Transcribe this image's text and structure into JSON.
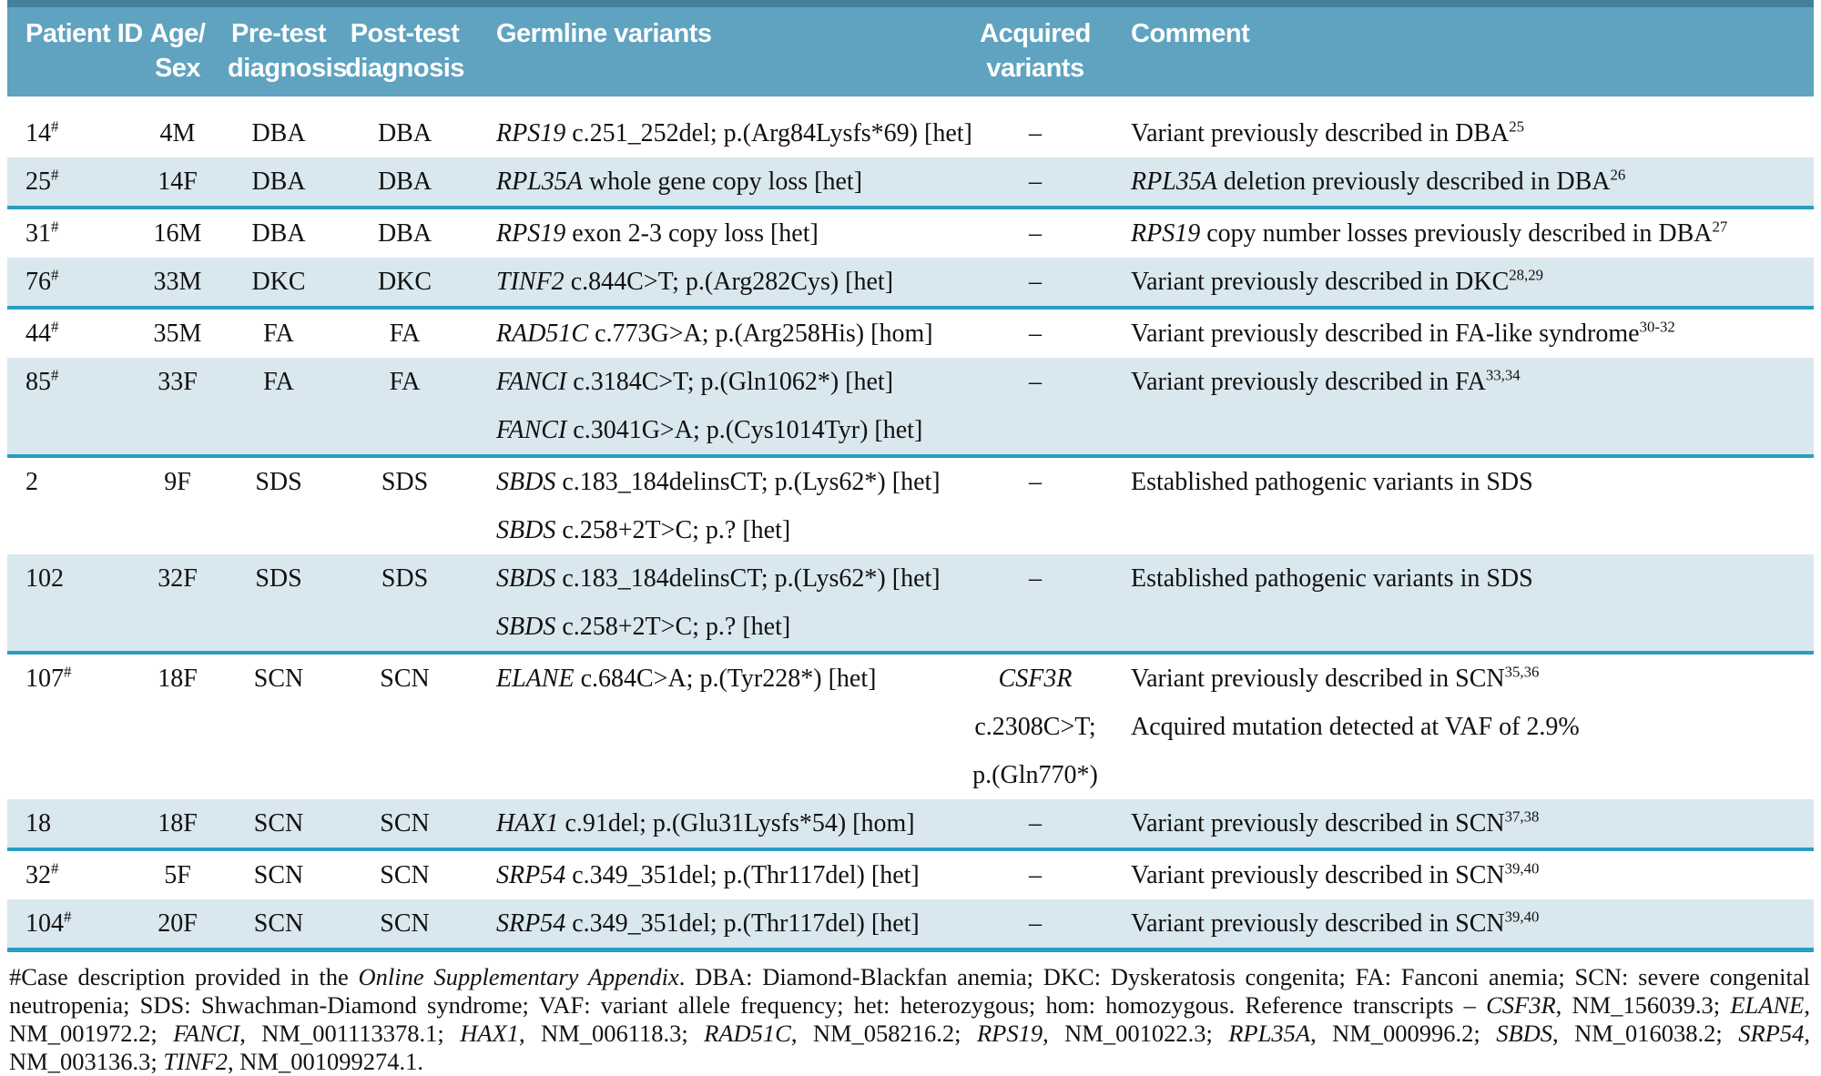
{
  "colors": {
    "header_bg": "#5fa3c0",
    "header_top_strip": "#45809b",
    "header_text": "#ffffff",
    "shaded_row_bg": "#d9e7ee",
    "separator_rule": "#2a9dc1",
    "body_text": "#111111"
  },
  "table": {
    "header": {
      "cols": [
        {
          "key": "patient-id",
          "align": "left",
          "lines": [
            "Patient ID"
          ]
        },
        {
          "key": "age-sex",
          "align": "center",
          "lines": [
            "Age/",
            "Sex"
          ]
        },
        {
          "key": "pretest",
          "align": "center",
          "lines": [
            "Pre-test",
            "diagnosis"
          ]
        },
        {
          "key": "posttest",
          "align": "center",
          "lines": [
            "Post-test",
            "diagnosis"
          ]
        },
        {
          "key": "germline",
          "align": "germ",
          "lines": [
            "Germline variants"
          ]
        },
        {
          "key": "acquired",
          "align": "center",
          "lines": [
            "Acquired",
            "variants"
          ]
        },
        {
          "key": "comment",
          "align": "comment",
          "lines": [
            "Comment"
          ]
        }
      ]
    },
    "rows": [
      {
        "shaded": false,
        "rule": false,
        "id": [
          {
            "t": "14"
          },
          {
            "t": "#",
            "s": true
          }
        ],
        "age_sex": "4M",
        "pre": "DBA",
        "post": "DBA",
        "germline": [
          [
            {
              "t": "RPS19",
              "i": true
            },
            {
              "t": " c.251_252del; p.(Arg84Lysfs*69) [het]"
            }
          ]
        ],
        "acquired": [
          [
            {
              "t": "–"
            }
          ]
        ],
        "comment": [
          [
            {
              "t": "Variant previously described in DBA"
            },
            {
              "t": "25",
              "s": true
            }
          ]
        ]
      },
      {
        "shaded": true,
        "rule": true,
        "id": [
          {
            "t": "25"
          },
          {
            "t": "#",
            "s": true
          }
        ],
        "age_sex": "14F",
        "pre": "DBA",
        "post": "DBA",
        "germline": [
          [
            {
              "t": "RPL35A",
              "i": true
            },
            {
              "t": " whole gene copy loss [het]"
            }
          ]
        ],
        "acquired": [
          [
            {
              "t": "–"
            }
          ]
        ],
        "comment": [
          [
            {
              "t": "RPL35A",
              "i": true
            },
            {
              "t": " deletion previously described in DBA"
            },
            {
              "t": "26",
              "s": true
            }
          ]
        ]
      },
      {
        "shaded": false,
        "rule": false,
        "id": [
          {
            "t": "31"
          },
          {
            "t": "#",
            "s": true
          }
        ],
        "age_sex": "16M",
        "pre": "DBA",
        "post": "DBA",
        "germline": [
          [
            {
              "t": "RPS19",
              "i": true
            },
            {
              "t": " exon 2-3 copy loss [het]"
            }
          ]
        ],
        "acquired": [
          [
            {
              "t": "–"
            }
          ]
        ],
        "comment": [
          [
            {
              "t": "RPS19",
              "i": true
            },
            {
              "t": " copy number losses previously described in DBA"
            },
            {
              "t": "27",
              "s": true
            }
          ]
        ]
      },
      {
        "shaded": true,
        "rule": true,
        "id": [
          {
            "t": "76"
          },
          {
            "t": "#",
            "s": true
          }
        ],
        "age_sex": "33M",
        "pre": "DKC",
        "post": "DKC",
        "germline": [
          [
            {
              "t": "TINF2",
              "i": true
            },
            {
              "t": " c.844C>T; p.(Arg282Cys) [het]"
            }
          ]
        ],
        "acquired": [
          [
            {
              "t": "–"
            }
          ]
        ],
        "comment": [
          [
            {
              "t": "Variant previously described in DKC"
            },
            {
              "t": "28,29",
              "s": true
            }
          ]
        ]
      },
      {
        "shaded": false,
        "rule": false,
        "id": [
          {
            "t": "44"
          },
          {
            "t": "#",
            "s": true
          }
        ],
        "age_sex": "35M",
        "pre": "FA",
        "post": "FA",
        "germline": [
          [
            {
              "t": "RAD51C",
              "i": true
            },
            {
              "t": " c.773G>A; p.(Arg258His) [hom]"
            }
          ]
        ],
        "acquired": [
          [
            {
              "t": "–"
            }
          ]
        ],
        "comment": [
          [
            {
              "t": "Variant previously described in FA-like syndrome"
            },
            {
              "t": "30-32",
              "s": true
            }
          ]
        ]
      },
      {
        "shaded": true,
        "rule": true,
        "id": [
          {
            "t": "85"
          },
          {
            "t": "#",
            "s": true
          }
        ],
        "age_sex": "33F",
        "pre": "FA",
        "post": "FA",
        "germline": [
          [
            {
              "t": "FANCI",
              "i": true
            },
            {
              "t": " c.3184C>T; p.(Gln1062*) [het]"
            }
          ],
          [
            {
              "t": "FANCI",
              "i": true
            },
            {
              "t": " c.3041G>A; p.(Cys1014Tyr) [het]"
            }
          ]
        ],
        "acquired": [
          [
            {
              "t": "–"
            }
          ]
        ],
        "comment": [
          [
            {
              "t": "Variant previously described in FA"
            },
            {
              "t": "33,34",
              "s": true
            }
          ]
        ]
      },
      {
        "shaded": false,
        "rule": false,
        "id": [
          {
            "t": "2"
          }
        ],
        "age_sex": "9F",
        "pre": "SDS",
        "post": "SDS",
        "germline": [
          [
            {
              "t": "SBDS",
              "i": true
            },
            {
              "t": " c.183_184delinsCT; p.(Lys62*) [het]"
            }
          ],
          [
            {
              "t": "SBDS",
              "i": true
            },
            {
              "t": " c.258+2T>C; p.? [het]"
            }
          ]
        ],
        "acquired": [
          [
            {
              "t": "–"
            }
          ]
        ],
        "comment": [
          [
            {
              "t": "Established pathogenic variants in SDS"
            }
          ]
        ]
      },
      {
        "shaded": true,
        "rule": true,
        "id": [
          {
            "t": "102"
          }
        ],
        "age_sex": "32F",
        "pre": "SDS",
        "post": "SDS",
        "germline": [
          [
            {
              "t": "SBDS",
              "i": true
            },
            {
              "t": " c.183_184delinsCT; p.(Lys62*) [het]"
            }
          ],
          [
            {
              "t": "SBDS",
              "i": true
            },
            {
              "t": " c.258+2T>C; p.? [het]"
            }
          ]
        ],
        "acquired": [
          [
            {
              "t": "–"
            }
          ]
        ],
        "comment": [
          [
            {
              "t": "Established pathogenic variants in SDS"
            }
          ]
        ]
      },
      {
        "shaded": false,
        "rule": false,
        "id": [
          {
            "t": "107"
          },
          {
            "t": "#",
            "s": true
          }
        ],
        "age_sex": "18F",
        "pre": "SCN",
        "post": "SCN",
        "germline": [
          [
            {
              "t": "ELANE",
              "i": true
            },
            {
              "t": " c.684C>A; p.(Tyr228*) [het]"
            }
          ]
        ],
        "acquired": [
          [
            {
              "t": "CSF3R",
              "i": true
            }
          ],
          [
            {
              "t": "c.2308C>T;"
            }
          ],
          [
            {
              "t": "p.(Gln770*)"
            }
          ]
        ],
        "comment": [
          [
            {
              "t": "Variant previously described in SCN"
            },
            {
              "t": "35,36",
              "s": true
            }
          ],
          [
            {
              "t": "Acquired mutation detected at VAF of 2.9%"
            }
          ]
        ]
      },
      {
        "shaded": true,
        "rule": true,
        "id": [
          {
            "t": "18"
          }
        ],
        "age_sex": "18F",
        "pre": "SCN",
        "post": "SCN",
        "germline": [
          [
            {
              "t": "HAX1",
              "i": true
            },
            {
              "t": " c.91del; p.(Glu31Lysfs*54) [hom]"
            }
          ]
        ],
        "acquired": [
          [
            {
              "t": "–"
            }
          ]
        ],
        "comment": [
          [
            {
              "t": "Variant previously described in SCN"
            },
            {
              "t": "37,38",
              "s": true
            }
          ]
        ]
      },
      {
        "shaded": false,
        "rule": false,
        "id": [
          {
            "t": "32"
          },
          {
            "t": "#",
            "s": true
          }
        ],
        "age_sex": "5F",
        "pre": "SCN",
        "post": "SCN",
        "germline": [
          [
            {
              "t": "SRP54",
              "i": true
            },
            {
              "t": " c.349_351del; p.(Thr117del) [het]"
            }
          ]
        ],
        "acquired": [
          [
            {
              "t": "–"
            }
          ]
        ],
        "comment": [
          [
            {
              "t": "Variant previously described in SCN"
            },
            {
              "t": "39,40",
              "s": true
            }
          ]
        ]
      },
      {
        "shaded": true,
        "rule": false,
        "last_rule": true,
        "id": [
          {
            "t": "104"
          },
          {
            "t": "#",
            "s": true
          }
        ],
        "age_sex": "20F",
        "pre": "SCN",
        "post": "SCN",
        "germline": [
          [
            {
              "t": "SRP54",
              "i": true
            },
            {
              "t": " c.349_351del; p.(Thr117del) [het]"
            }
          ]
        ],
        "acquired": [
          [
            {
              "t": "–"
            }
          ]
        ],
        "comment": [
          [
            {
              "t": "Variant previously described in SCN"
            },
            {
              "t": "39,40",
              "s": true
            }
          ]
        ]
      }
    ]
  },
  "footnote": {
    "segments": [
      {
        "t": "#Case description provided in the "
      },
      {
        "t": "Online Supplementary Appendix",
        "i": true
      },
      {
        "t": ". DBA: Diamond-Blackfan anemia; DKC: Dyskeratosis congenita; FA: Fanconi anemia; SCN: severe congenital neutropenia; SDS: Shwachman-Diamond syndrome; VAF: variant allele frequency; het: heterozygous; hom: homozygous. Reference transcripts – "
      },
      {
        "t": "CSF3R",
        "i": true
      },
      {
        "t": ", NM_156039.3; "
      },
      {
        "t": "ELANE",
        "i": true
      },
      {
        "t": ", NM_001972.2; "
      },
      {
        "t": "FANCI",
        "i": true
      },
      {
        "t": ", NM_001113378.1; "
      },
      {
        "t": "HAX1",
        "i": true
      },
      {
        "t": ", NM_006118.3; "
      },
      {
        "t": "RAD51C",
        "i": true
      },
      {
        "t": ", NM_058216.2; "
      },
      {
        "t": "RPS19",
        "i": true
      },
      {
        "t": ", NM_001022.3; "
      },
      {
        "t": "RPL35A",
        "i": true
      },
      {
        "t": ", NM_000996.2; "
      },
      {
        "t": "SBDS",
        "i": true
      },
      {
        "t": ", NM_016038.2; "
      },
      {
        "t": "SRP54",
        "i": true
      },
      {
        "t": ", NM_003136.3; "
      },
      {
        "t": "TINF2",
        "i": true
      },
      {
        "t": ", NM_001099274.1."
      }
    ]
  }
}
